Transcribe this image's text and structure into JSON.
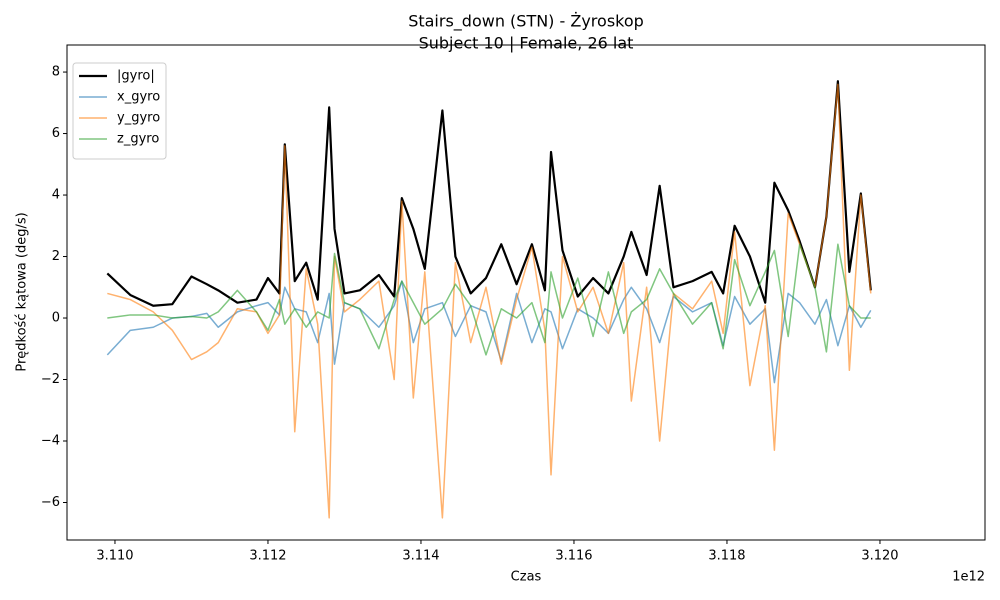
{
  "chart_data": {
    "type": "line",
    "title": "Stairs_down (STN) - Żyroskop",
    "subtitle": "Subject 10 | Female, 26 lat",
    "x_label": "Czas",
    "y_label": "Prędkość kątowa (deg/s)",
    "x_offset_label": "1e12",
    "legend": "upper left",
    "x": [
      3109900000000,
      3110200000000,
      3110500000000,
      3110750000000,
      3111000000000,
      3111200000000,
      3111350000000,
      3111600000000,
      3111850000000,
      3112000000000,
      3112150000000,
      3112220000000,
      3112350000000,
      3112500000000,
      3112650000000,
      3112800000000,
      3112870000000,
      3113000000000,
      3113200000000,
      3113450000000,
      3113650000000,
      3113750000000,
      3113900000000,
      3114050000000,
      3114280000000,
      3114450000000,
      3114650000000,
      3114850000000,
      3115050000000,
      3115250000000,
      3115450000000,
      3115620000000,
      3115700000000,
      3115850000000,
      3116050000000,
      3116250000000,
      3116450000000,
      3116650000000,
      3116750000000,
      3116950000000,
      3117120000000,
      3117300000000,
      3117550000000,
      3117800000000,
      3117950000000,
      3118100000000,
      3118300000000,
      3118500000000,
      3118620000000,
      3118800000000,
      3118950000000,
      3119150000000,
      3119300000000,
      3119450000000,
      3119600000000,
      3119750000000,
      3119880000000
    ],
    "series": [
      {
        "name": "|gyro|",
        "color": "#000000",
        "alpha": 1,
        "linewidth": 2.2,
        "values": [
          1.45,
          0.75,
          0.4,
          0.45,
          1.35,
          1.1,
          0.9,
          0.5,
          0.6,
          1.3,
          0.8,
          5.65,
          1.2,
          1.8,
          0.6,
          6.85,
          2.9,
          0.8,
          0.9,
          1.4,
          0.7,
          3.9,
          2.9,
          1.6,
          6.75,
          2.0,
          0.8,
          1.3,
          2.4,
          1.1,
          2.4,
          0.9,
          5.4,
          2.2,
          0.7,
          1.3,
          0.8,
          2.0,
          2.8,
          1.4,
          4.3,
          1.0,
          1.2,
          1.5,
          0.8,
          3.0,
          2.0,
          0.5,
          4.4,
          3.5,
          2.5,
          1.0,
          3.3,
          7.7,
          1.5,
          4.05,
          0.9
        ]
      },
      {
        "name": "x_gyro",
        "color": "#1f77b4",
        "alpha": 0.6,
        "linewidth": 1.5,
        "values": [
          -1.2,
          -0.4,
          -0.3,
          0.0,
          0.05,
          0.15,
          -0.3,
          0.2,
          0.4,
          0.5,
          0.1,
          1.0,
          0.3,
          0.2,
          -0.8,
          0.8,
          -1.5,
          0.5,
          0.3,
          -0.3,
          0.4,
          1.2,
          -0.8,
          0.3,
          0.5,
          -0.6,
          0.4,
          0.2,
          -1.4,
          0.8,
          -0.8,
          0.3,
          0.2,
          -1.0,
          0.3,
          0.0,
          -0.5,
          0.6,
          1.0,
          0.3,
          -0.8,
          0.7,
          0.2,
          0.5,
          -0.9,
          0.7,
          -0.2,
          0.3,
          -2.1,
          0.8,
          0.5,
          -0.2,
          0.6,
          -0.9,
          0.4,
          -0.3,
          0.25
        ]
      },
      {
        "name": "y_gyro",
        "color": "#ff7f0e",
        "alpha": 0.6,
        "linewidth": 1.5,
        "values": [
          0.8,
          0.6,
          0.2,
          -0.4,
          -1.35,
          -1.1,
          -0.8,
          0.3,
          0.2,
          -0.5,
          0.1,
          5.6,
          -3.7,
          1.6,
          -0.2,
          -6.5,
          2.0,
          0.2,
          0.6,
          1.2,
          -2.0,
          3.8,
          -2.6,
          1.5,
          -6.5,
          1.8,
          -0.8,
          1.0,
          -1.5,
          0.6,
          2.3,
          -0.4,
          -5.1,
          2.0,
          0.2,
          1.0,
          -0.5,
          1.8,
          -2.7,
          1.0,
          -4.0,
          0.8,
          0.3,
          1.2,
          -0.5,
          2.8,
          -2.2,
          0.4,
          -4.3,
          3.4,
          2.4,
          1.0,
          3.3,
          7.6,
          -1.7,
          4.0,
          0.8
        ]
      },
      {
        "name": "z_gyro",
        "color": "#2ca02c",
        "alpha": 0.6,
        "linewidth": 1.5,
        "values": [
          0.0,
          0.1,
          0.1,
          0.0,
          0.05,
          0.0,
          0.2,
          0.9,
          0.2,
          -0.4,
          0.6,
          -0.2,
          0.3,
          -0.3,
          0.2,
          0.0,
          2.1,
          0.5,
          0.3,
          -1.0,
          0.6,
          1.2,
          0.5,
          -0.2,
          0.3,
          1.1,
          0.4,
          -1.2,
          0.3,
          0.0,
          0.5,
          -0.8,
          1.5,
          0.0,
          1.3,
          -0.6,
          1.5,
          -0.5,
          0.2,
          0.6,
          1.6,
          0.8,
          -0.2,
          0.5,
          -1.0,
          1.9,
          0.4,
          1.5,
          2.2,
          -0.6,
          2.4,
          1.0,
          -1.1,
          2.4,
          0.4,
          0.0,
          0.0
        ]
      }
    ],
    "xlim": [
      3109373000000,
      3121373000000
    ],
    "ylim": [
      -7.22,
      8.88
    ],
    "xticks": [
      {
        "value": 3110000000000,
        "label": "3.110"
      },
      {
        "value": 3112000000000,
        "label": "3.112"
      },
      {
        "value": 3114000000000,
        "label": "3.114"
      },
      {
        "value": 3116000000000,
        "label": "3.116"
      },
      {
        "value": 3118000000000,
        "label": "3.118"
      },
      {
        "value": 3120000000000,
        "label": "3.120"
      }
    ],
    "yticks": [
      {
        "value": -6,
        "label": "−6"
      },
      {
        "value": -4,
        "label": "−4"
      },
      {
        "value": -2,
        "label": "−2"
      },
      0,
      2,
      4,
      6,
      8
    ],
    "grid": false
  }
}
